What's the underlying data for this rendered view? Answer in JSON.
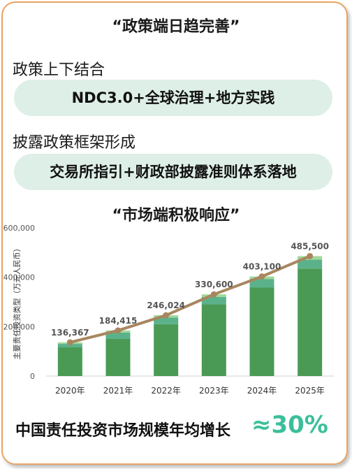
{
  "policy": {
    "title": "“政策端日趋完善”",
    "item1_label": "政策上下结合",
    "item1_pill": "NDC3.0+全球治理+地方实践",
    "item2_label": "披露政策框架形成",
    "item2_pill": "交易所指引+财政部披露准则体系落地"
  },
  "market": {
    "title": "“市场端积极响应”"
  },
  "chart_data": {
    "type": "bar",
    "categories": [
      "2020年",
      "2021年",
      "2022年",
      "2023年",
      "2024年",
      "2025年"
    ],
    "ylabel": "主要责任投资类型（万元人民币）",
    "ylim": [
      0,
      600000
    ],
    "yticks": [
      "0",
      "200,000",
      "400,000",
      "600,000"
    ],
    "ytick_values": [
      0,
      200000,
      400000,
      600000
    ],
    "series": [
      {
        "values": [
          116000,
          150000,
          210000,
          290000,
          358000,
          435000
        ]
      },
      {
        "values": [
          14000,
          26000,
          27000,
          30000,
          35000,
          36000
        ]
      },
      {
        "values": [
          6367,
          8415,
          9024,
          10600,
          10100,
          14500
        ]
      }
    ],
    "total_line": {
      "values": [
        136367,
        184415,
        246024,
        330600,
        403100,
        485500
      ]
    },
    "data_labels": [
      "136,367",
      "184,415",
      "246,024",
      "330,600",
      "403,100",
      "485,500"
    ],
    "colors": {
      "series": [
        "#4a9a55",
        "#5bb28a",
        "#9fd89a"
      ],
      "line": "#a8865f"
    },
    "grid": false
  },
  "footer": {
    "text": "中国责任投资市场规模年均增长",
    "value": "≈30%",
    "value_color": "#3bbf9a"
  }
}
